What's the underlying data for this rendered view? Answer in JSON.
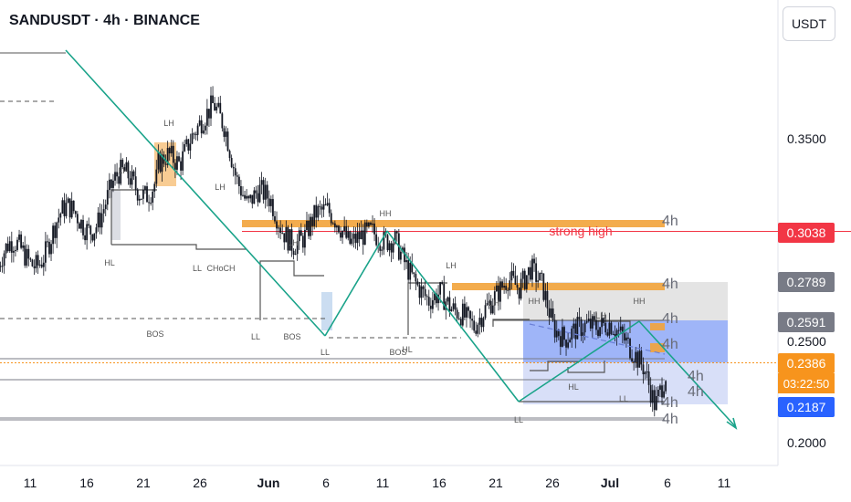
{
  "header": {
    "title": "SANDUSDT · 4h · BINANCE"
  },
  "currency_button": "USDT",
  "colors": {
    "up": "#131722",
    "down": "#131722",
    "accent_orange": "#f2a33a",
    "teal": "#1aa38a",
    "red": "#f23645",
    "blue": "#2962ff",
    "grey": "#787b86"
  },
  "chart_data": {
    "type": "candlestick",
    "symbol": "SANDUSDT",
    "interval": "4h",
    "exchange": "BINANCE",
    "x_ticks": [
      "11",
      "16",
      "21",
      "26",
      "Jun",
      "6",
      "11",
      "16",
      "21",
      "26",
      "Jul",
      "6",
      "11"
    ],
    "y_ticks": [
      "0.3500",
      "0.2500",
      "0.2000"
    ],
    "ylim": [
      0.18,
      0.395
    ],
    "price_tags": [
      {
        "value": "0.3038",
        "kind": "red"
      },
      {
        "value": "0.2789",
        "kind": "grey"
      },
      {
        "value": "0.2591",
        "kind": "grey"
      },
      {
        "value": "0.2386",
        "kind": "orange"
      },
      {
        "value": "0.2187",
        "kind": "blue"
      }
    ],
    "countdown": "03:22:50",
    "path": [
      [
        -10,
        0.342
      ],
      [
        -9,
        0.347
      ],
      [
        -8,
        0.342
      ],
      [
        -7,
        0.355
      ],
      [
        -6,
        0.364
      ],
      [
        -5,
        0.372
      ],
      [
        -4,
        0.36
      ],
      [
        -3,
        0.335
      ],
      [
        -2,
        0.322
      ],
      [
        -1,
        0.33
      ],
      [
        0,
        0.325
      ],
      [
        1,
        0.31
      ],
      [
        2,
        0.302
      ],
      [
        3,
        0.306
      ],
      [
        4,
        0.318
      ],
      [
        5,
        0.32
      ],
      [
        6,
        0.313
      ],
      [
        7,
        0.303
      ],
      [
        8,
        0.307
      ],
      [
        9,
        0.309
      ],
      [
        10,
        0.304
      ],
      [
        11,
        0.305
      ],
      [
        12,
        0.292
      ],
      [
        13,
        0.282
      ],
      [
        14,
        0.275
      ],
      [
        15,
        0.279
      ],
      [
        16,
        0.271
      ],
      [
        17,
        0.268
      ],
      [
        18,
        0.262
      ],
      [
        19,
        0.271
      ],
      [
        20,
        0.278
      ],
      [
        21,
        0.286
      ],
      [
        22,
        0.281
      ],
      [
        23,
        0.291
      ],
      [
        24,
        0.283
      ],
      [
        25,
        0.262
      ],
      [
        26,
        0.256
      ],
      [
        27,
        0.261
      ],
      [
        28,
        0.263
      ],
      [
        29,
        0.262
      ],
      [
        30,
        0.264
      ],
      [
        31,
        0.258
      ],
      [
        32,
        0.25
      ],
      [
        33,
        0.242
      ],
      [
        34,
        0.223
      ],
      [
        35,
        0.24
      ],
      [
        36,
        0.258
      ],
      [
        37,
        0.255
      ],
      [
        38,
        0.246
      ],
      [
        39,
        0.247
      ],
      [
        40,
        0.243
      ],
      [
        41,
        0.235
      ],
      [
        42,
        0.248
      ],
      [
        43,
        0.258
      ],
      [
        44,
        0.254
      ],
      [
        45,
        0.248
      ],
      [
        46,
        0.251
      ],
      [
        47,
        0.256
      ],
      [
        48,
        0.248
      ]
    ],
    "annotations": [
      {
        "text": "strong high",
        "color": "red"
      },
      {
        "text": "HH"
      },
      {
        "text": "LH"
      },
      {
        "text": "HL"
      },
      {
        "text": "LL"
      },
      {
        "text": "BOS"
      },
      {
        "text": "CHoCH"
      },
      {
        "text": "4h"
      }
    ]
  },
  "labels": {
    "strong_high": "strong high",
    "hh": "HH",
    "lh": "LH",
    "hl": "HL",
    "ll": "LL",
    "bos": "BOS",
    "choch": "CHoCH",
    "tf": "4h"
  }
}
